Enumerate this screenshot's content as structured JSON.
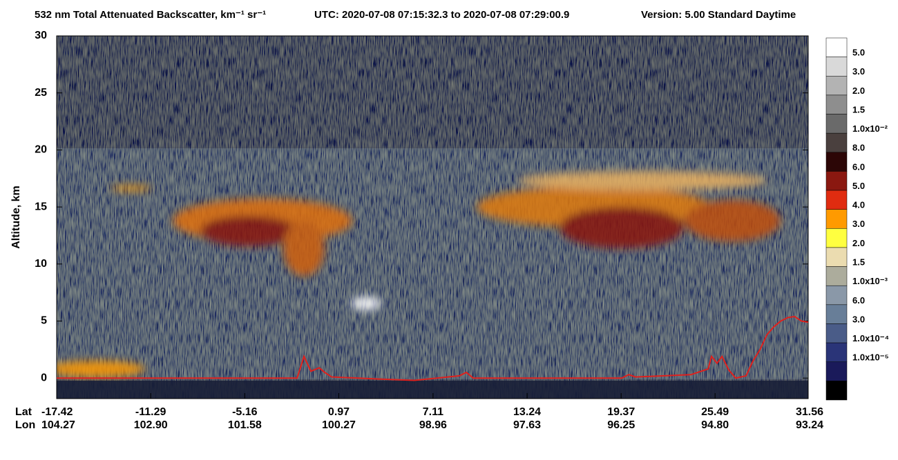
{
  "chart_data": {
    "type": "curtain",
    "title": "532 nm Total Attenuated Backscatter, km⁻¹ sr⁻¹",
    "time_range": "UTC:  2020-07-08 07:15:32.3  to  2020-07-08 07:29:00.9",
    "version": "Version: 5.00  Standard  Daytime",
    "ylabel": "Altitude, km",
    "ylim": [
      -1.8,
      30
    ],
    "yticks": [
      0,
      5,
      10,
      15,
      20,
      25,
      30
    ],
    "xlim": [
      -17.42,
      31.56
    ],
    "x_row_labels": [
      "Lat",
      "Lon"
    ],
    "xticks": [
      -17.42,
      -11.29,
      -5.16,
      0.97,
      7.11,
      13.24,
      19.37,
      25.49,
      31.56
    ],
    "xticks_lon": [
      104.27,
      {
        "value": 102.9,
        "label": "102.90"
      },
      101.58,
      100.27,
      98.96,
      97.63,
      96.25,
      {
        "value": 94.8,
        "label": "94.80"
      },
      93.24
    ],
    "series": [
      {
        "color": "#e0201c",
        "x": [
          -17.42,
          -1.75,
          -1.3,
          -0.85,
          -0.31,
          0.05,
          0.5,
          3.88,
          5.9,
          8.83,
          9.28,
          9.73,
          19.41,
          19.86,
          20.31,
          23.91,
          25.04,
          25.26,
          25.62,
          25.94,
          26.39,
          26.84,
          27.51,
          27.96,
          28.42,
          28.87,
          29.32,
          29.77,
          30.22,
          30.67,
          31.12,
          31.56
        ],
        "values": [
          0,
          0,
          1.9,
          0.6,
          0.9,
          0.5,
          0.1,
          -0.1,
          -0.2,
          0.2,
          0.5,
          0,
          0,
          0.3,
          0.1,
          0.3,
          0.8,
          1.9,
          1.3,
          1.9,
          0.7,
          0,
          0.2,
          1.5,
          2.5,
          3.8,
          4.5,
          5,
          5.3,
          5.4,
          5,
          4.9
        ]
      }
    ],
    "colorbar": {
      "labels": [
        "5.0",
        "3.0",
        "2.0",
        "1.5",
        "1.0x10⁻²",
        "8.0",
        "6.0",
        "5.0",
        "4.0",
        "3.0",
        "2.0",
        "1.5",
        "1.0x10⁻³",
        "6.0",
        "3.0",
        "1.0x10⁻⁴",
        "1.0x10⁻⁵"
      ],
      "colors": [
        "#ffffff",
        "#d9d9d9",
        "#b3b3b3",
        "#8e8e8e",
        "#6a6a6a",
        "#4a403e",
        "#2c0606",
        "#8a1810",
        "#e02c10",
        "#ff9a00",
        "#ffff40",
        "#ebdcb0",
        "#acac9c",
        "#8a98a8",
        "#687e98",
        "#4a5c88",
        "#2a3478",
        "#1a1a5a",
        "#000000"
      ]
    }
  }
}
